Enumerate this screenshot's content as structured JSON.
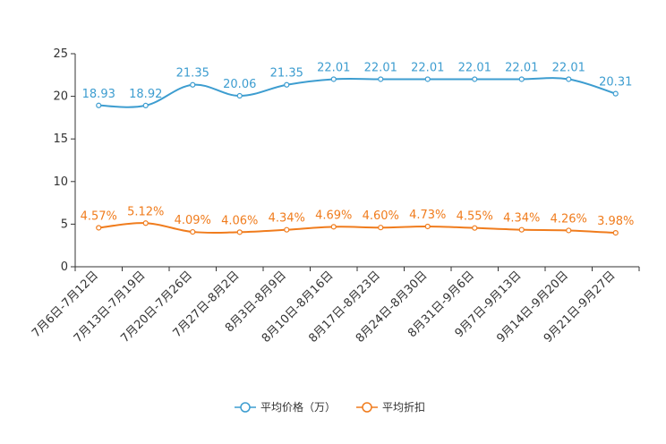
{
  "chart_data": {
    "type": "line",
    "title": "",
    "xlabel": "",
    "ylabel": "",
    "ylim": [
      0,
      25
    ],
    "yticks": [
      0,
      5,
      10,
      15,
      20,
      25
    ],
    "grid": false,
    "legend_position": "bottom-center",
    "categories": [
      "7月6日-7月12日",
      "7月13日-7月19日",
      "7月20日-7月26日",
      "7月27日-8月2日",
      "8月3日-8月9日",
      "8月10日-8月16日",
      "8月17日-8月23日",
      "8月24日-8月30日",
      "8月31日-9月6日",
      "9月7日-9月13日",
      "9月14日-9月20日",
      "9月21日-9月27日"
    ],
    "series": [
      {
        "name": "平均价格（万）",
        "color": "#3d9dd0",
        "values": [
          18.93,
          18.92,
          21.35,
          20.06,
          21.35,
          22.01,
          22.01,
          22.01,
          22.01,
          22.01,
          22.01,
          20.31
        ],
        "labels": [
          "18.93",
          "18.92",
          "21.35",
          "20.06",
          "21.35",
          "22.01",
          "22.01",
          "22.01",
          "22.01",
          "22.01",
          "22.01",
          "20.31"
        ]
      },
      {
        "name": "平均折扣",
        "color": "#f07c1d",
        "values": [
          4.57,
          5.12,
          4.09,
          4.06,
          4.34,
          4.69,
          4.6,
          4.73,
          4.55,
          4.34,
          4.26,
          3.98
        ],
        "labels": [
          "4.57%",
          "5.12%",
          "4.09%",
          "4.06%",
          "4.34%",
          "4.69%",
          "4.60%",
          "4.73%",
          "4.55%",
          "4.34%",
          "4.26%",
          "3.98%"
        ]
      }
    ]
  }
}
